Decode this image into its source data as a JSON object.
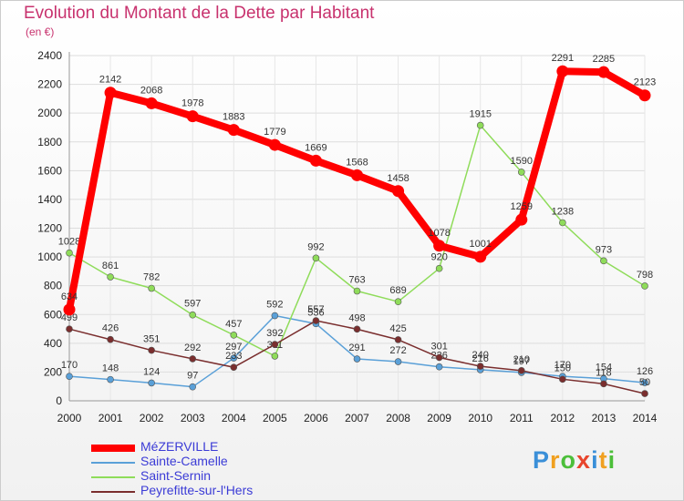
{
  "header": {
    "title": "Evolution du Montant de la Dette par Habitant",
    "subtitle": "(en €)"
  },
  "logo": {
    "text": "Proxiti"
  },
  "chart_data": {
    "type": "line",
    "title": "Evolution du Montant de la Dette par Habitant",
    "subtitle": "(en €)",
    "xlabel": "",
    "ylabel": "",
    "x": [
      "2000",
      "2001",
      "2002",
      "2003",
      "2004",
      "2005",
      "2006",
      "2007",
      "2008",
      "2009",
      "2010",
      "2011",
      "2012",
      "2013",
      "2014"
    ],
    "ylim": [
      0,
      2400
    ],
    "yticks": [
      0,
      200,
      400,
      600,
      800,
      1000,
      1200,
      1400,
      1600,
      1800,
      2000,
      2200,
      2400
    ],
    "grid": true,
    "legend": "bottom-left",
    "series": [
      {
        "name": "MéZERVILLE",
        "color": "#ff0000",
        "values": [
          634,
          2142,
          2068,
          1978,
          1883,
          1779,
          1669,
          1568,
          1458,
          1078,
          1001,
          1259,
          2291,
          2285,
          2123
        ]
      },
      {
        "name": "Sainte-Camelle",
        "color": "#5aa0d8",
        "values": [
          170,
          148,
          124,
          97,
          297,
          592,
          536,
          291,
          272,
          236,
          216,
          197,
          170,
          154,
          126
        ]
      },
      {
        "name": "Saint-Sernin",
        "color": "#8fdc5a",
        "values": [
          1028,
          861,
          782,
          597,
          457,
          311,
          992,
          763,
          689,
          920,
          1915,
          1590,
          1238,
          973,
          798
        ]
      },
      {
        "name": "Peyrefitte-sur-l'Hers",
        "color": "#7a2e2e",
        "values": [
          499,
          426,
          351,
          292,
          233,
          392,
          557,
          498,
          425,
          301,
          240,
          210,
          150,
          118,
          50
        ]
      }
    ]
  }
}
